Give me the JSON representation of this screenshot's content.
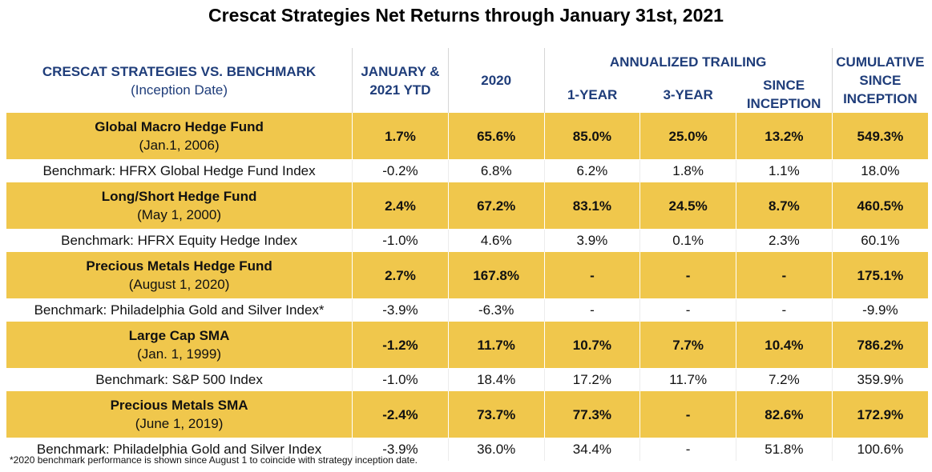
{
  "chart_data": {
    "type": "table",
    "title": "Crescat Strategies Net Returns through January 31st, 2021",
    "header": {
      "col0_main": "CRESCAT STRATEGIES VS. BENCHMARK",
      "col0_sub": "(Inception Date)",
      "ytd_line1": "JANUARY &",
      "ytd_line2": "2021 YTD",
      "y2020": "2020",
      "group": "ANNUALIZED TRAILING",
      "one_year": "1-YEAR",
      "three_year": "3-YEAR",
      "since_line1": "SINCE",
      "since_line2": "INCEPTION",
      "cum_line1": "CUMULATIVE",
      "cum_line2": "SINCE",
      "cum_line3": "INCEPTION"
    },
    "rows": [
      {
        "name": "Global Macro Hedge Fund",
        "date": "(Jan.1, 2006)",
        "values": [
          "1.7%",
          "65.6%",
          "85.0%",
          "25.0%",
          "13.2%",
          "549.3%"
        ],
        "bench_name": "Benchmark: HFRX Global Hedge Fund Index",
        "bench_values": [
          "-0.2%",
          "6.8%",
          "6.2%",
          "1.8%",
          "1.1%",
          "18.0%"
        ]
      },
      {
        "name": "Long/Short Hedge Fund",
        "date": "(May 1, 2000)",
        "values": [
          "2.4%",
          "67.2%",
          "83.1%",
          "24.5%",
          "8.7%",
          "460.5%"
        ],
        "bench_name": "Benchmark: HFRX Equity Hedge Index",
        "bench_values": [
          "-1.0%",
          "4.6%",
          "3.9%",
          "0.1%",
          "2.3%",
          "60.1%"
        ]
      },
      {
        "name": "Precious Metals Hedge Fund",
        "date": "(August 1, 2020)",
        "values": [
          "2.7%",
          "167.8%",
          "-",
          "-",
          "-",
          "175.1%"
        ],
        "bench_name": "Benchmark: Philadelphia Gold and Silver Index*",
        "bench_values": [
          "-3.9%",
          "-6.3%",
          "-",
          "-",
          "-",
          "-9.9%"
        ]
      },
      {
        "name": "Large Cap SMA",
        "date": "(Jan. 1, 1999)",
        "values": [
          "-1.2%",
          "11.7%",
          "10.7%",
          "7.7%",
          "10.4%",
          "786.2%"
        ],
        "bench_name": "Benchmark: S&P 500 Index",
        "bench_values": [
          "-1.0%",
          "18.4%",
          "17.2%",
          "11.7%",
          "7.2%",
          "359.9%"
        ]
      },
      {
        "name": "Precious Metals SMA",
        "date": "(June 1, 2019)",
        "values": [
          "-2.4%",
          "73.7%",
          "77.3%",
          "-",
          "82.6%",
          "172.9%"
        ],
        "bench_name": "Benchmark: Philadelphia Gold and Silver Index",
        "bench_values": [
          "-3.9%",
          "36.0%",
          "34.4%",
          "-",
          "51.8%",
          "100.6%"
        ]
      }
    ],
    "footnote": "*2020 benchmark performance is shown since August 1 to coincide with strategy inception date.",
    "colors": {
      "fund_row": "#f0c74c",
      "header_text": "#1f3d7a"
    }
  }
}
